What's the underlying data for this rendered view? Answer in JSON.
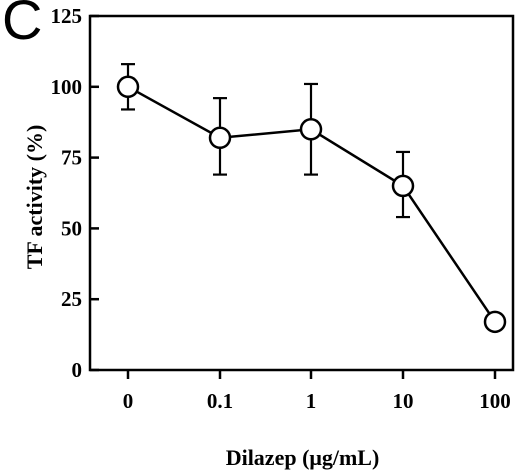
{
  "panel_label": "C",
  "chart_data": {
    "type": "line",
    "x_scale": "categorical",
    "categories": [
      "0",
      "0.1",
      "1",
      "10",
      "100"
    ],
    "xlabel": "Dilazep (μg/mL)",
    "ylabel": "TF activity (%)",
    "ylim": [
      0,
      125
    ],
    "yticks": [
      0,
      25,
      50,
      75,
      100,
      125
    ],
    "grid": false,
    "series": [
      {
        "values": [
          100,
          82,
          85,
          65,
          17
        ],
        "error_upper": [
          108,
          96,
          101,
          77,
          null
        ],
        "error_lower": [
          92,
          69,
          69,
          54,
          null
        ],
        "marker": "open-circle",
        "color": "#000000"
      }
    ]
  }
}
